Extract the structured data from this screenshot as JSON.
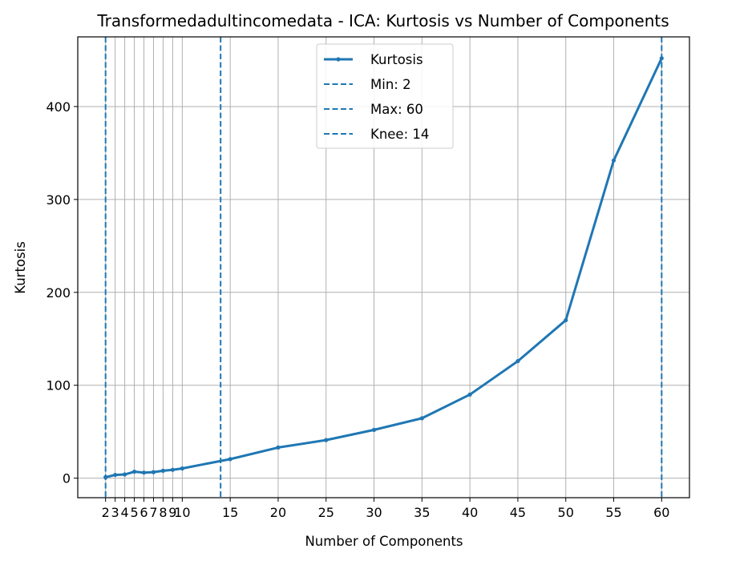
{
  "chart_data": {
    "type": "line",
    "title": "Transformedadultincomedata - ICA: Kurtosis vs Number of Components",
    "xlabel": "Number of Components",
    "ylabel": "Kurtosis",
    "xlim": [
      -0.9,
      62.9
    ],
    "ylim": [
      -21,
      475
    ],
    "x_ticks": [
      2,
      3,
      4,
      5,
      6,
      7,
      8,
      9,
      10,
      15,
      20,
      25,
      30,
      35,
      40,
      45,
      50,
      55,
      60
    ],
    "x_tick_labels": [
      "2",
      "3",
      "4",
      "5",
      "6",
      "7",
      "8",
      "9",
      "10",
      "15",
      "20",
      "25",
      "30",
      "35",
      "40",
      "45",
      "50",
      "55",
      "60"
    ],
    "y_ticks": [
      0,
      100,
      200,
      300,
      400
    ],
    "y_tick_labels": [
      "0",
      "100",
      "200",
      "300",
      "400"
    ],
    "grid": true,
    "legend_position": "top-center",
    "series": [
      {
        "name": "Kurtosis",
        "color": "#1f77b4",
        "x": [
          2,
          3,
          4,
          5,
          6,
          7,
          8,
          9,
          10,
          15,
          20,
          25,
          30,
          35,
          40,
          45,
          50,
          55,
          60
        ],
        "values": [
          1,
          3.5,
          4,
          7,
          6,
          6.5,
          8,
          9,
          10.5,
          20.5,
          33,
          41,
          52,
          64.5,
          90,
          126,
          170,
          342,
          452
        ]
      }
    ],
    "vlines": [
      {
        "name": "Min: 2",
        "x": 2,
        "color": "#1f77b4"
      },
      {
        "name": "Max: 60",
        "x": 60,
        "color": "#1f77b4"
      },
      {
        "name": "Knee: 14",
        "x": 14,
        "color": "#1f77b4"
      }
    ]
  }
}
